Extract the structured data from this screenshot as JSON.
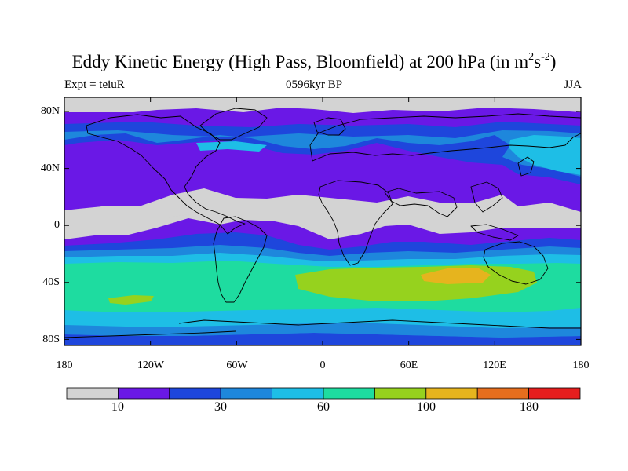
{
  "title": {
    "main": "Eddy Kinetic Energy (High Pass, Bloomfield) at 200 hPa (in m",
    "sup1": "2",
    "mid": "s",
    "sup2": "-2",
    "end": ")"
  },
  "subtitle": {
    "left": "Expt = teiuR",
    "center": "0596kyr BP",
    "right": "JJA"
  },
  "axes": {
    "lat_labels": [
      "80N",
      "40N",
      "0",
      "40S",
      "80S"
    ],
    "lon_labels": [
      "180",
      "120W",
      "60W",
      "0",
      "60E",
      "120E",
      "180"
    ]
  },
  "colorbar": {
    "colors": [
      "#d3d3d3",
      "#6a18e6",
      "#1e46dc",
      "#1e87dc",
      "#1ebee6",
      "#1edca0",
      "#96d21e",
      "#e6b41e",
      "#e66e1e",
      "#e61e1e"
    ],
    "labels": [
      "10",
      "30",
      "60",
      "100",
      "180"
    ]
  }
}
